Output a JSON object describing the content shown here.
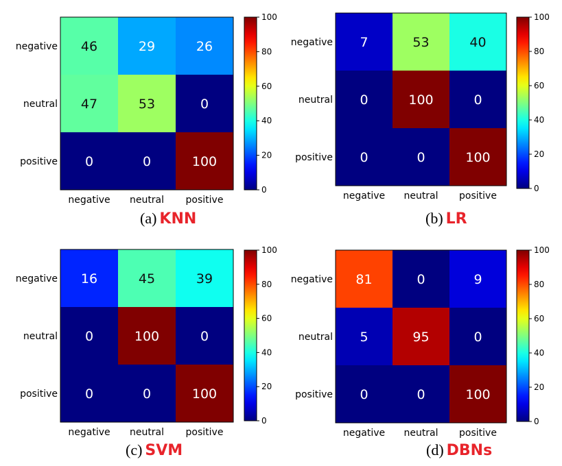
{
  "colors": {
    "caption_method": "#e8242b",
    "caption_letter": "#000000",
    "colormap": "jet"
  },
  "chart_data": [
    {
      "type": "heatmap",
      "title": "",
      "caption_letter": "(a)",
      "caption_method": "KNN",
      "x_categories": [
        "negative",
        "neutral",
        "positive"
      ],
      "y_categories": [
        "negative",
        "neutral",
        "positive"
      ],
      "values": [
        [
          46,
          29,
          26
        ],
        [
          47,
          53,
          0
        ],
        [
          0,
          0,
          100
        ]
      ],
      "colorbar": {
        "min": 0,
        "max": 100,
        "ticks": [
          "0",
          "20",
          "40",
          "60",
          "80",
          "100"
        ]
      }
    },
    {
      "type": "heatmap",
      "title": "",
      "caption_letter": "(b)",
      "caption_method": "LR",
      "x_categories": [
        "negative",
        "neutral",
        "positive"
      ],
      "y_categories": [
        "negative",
        "neutral",
        "positive"
      ],
      "values": [
        [
          7,
          53,
          40
        ],
        [
          0,
          100,
          0
        ],
        [
          0,
          0,
          100
        ]
      ],
      "colorbar": {
        "min": 0,
        "max": 100,
        "ticks": [
          "0",
          "20",
          "40",
          "60",
          "80",
          "100"
        ]
      }
    },
    {
      "type": "heatmap",
      "title": "",
      "caption_letter": "(c)",
      "caption_method": "SVM",
      "x_categories": [
        "negative",
        "neutral",
        "positive"
      ],
      "y_categories": [
        "negative",
        "neutral",
        "positive"
      ],
      "values": [
        [
          16,
          45,
          39
        ],
        [
          0,
          100,
          0
        ],
        [
          0,
          0,
          100
        ]
      ],
      "colorbar": {
        "min": 0,
        "max": 100,
        "ticks": [
          "0",
          "20",
          "40",
          "60",
          "80",
          "100"
        ]
      }
    },
    {
      "type": "heatmap",
      "title": "",
      "caption_letter": "(d)",
      "caption_method": "DBNs",
      "x_categories": [
        "negative",
        "neutral",
        "positive"
      ],
      "y_categories": [
        "negative",
        "neutral",
        "positive"
      ],
      "values": [
        [
          81,
          0,
          9
        ],
        [
          5,
          95,
          0
        ],
        [
          0,
          0,
          100
        ]
      ],
      "colorbar": {
        "min": 0,
        "max": 100,
        "ticks": [
          "0",
          "20",
          "40",
          "60",
          "80",
          "100"
        ]
      }
    }
  ]
}
